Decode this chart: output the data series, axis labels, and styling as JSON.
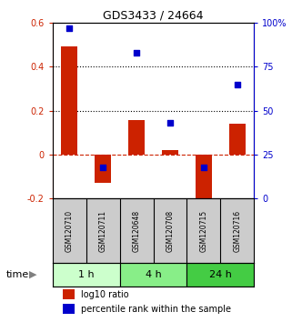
{
  "title": "GDS3433 / 24664",
  "samples": [
    "GSM120710",
    "GSM120711",
    "GSM120648",
    "GSM120708",
    "GSM120715",
    "GSM120716"
  ],
  "log10_ratio": [
    0.49,
    -0.13,
    0.155,
    0.02,
    -0.22,
    0.14
  ],
  "percentile_rank": [
    97,
    18,
    83,
    43,
    18,
    65
  ],
  "bar_color": "#cc2200",
  "dot_color": "#0000cc",
  "ylim_left": [
    -0.2,
    0.6
  ],
  "ylim_right": [
    0,
    100
  ],
  "yticks_left": [
    -0.2,
    0.0,
    0.2,
    0.4,
    0.6
  ],
  "ytick_labels_left": [
    "-0.2",
    "0",
    "0.2",
    "0.4",
    "0.6"
  ],
  "yticks_right": [
    0,
    25,
    50,
    75,
    100
  ],
  "ytick_labels_right": [
    "0",
    "25",
    "50",
    "75",
    "100%"
  ],
  "hlines": [
    0.2,
    0.4
  ],
  "time_groups": [
    {
      "label": "1 h",
      "start": 0,
      "end": 2,
      "color": "#ccffcc"
    },
    {
      "label": "4 h",
      "start": 2,
      "end": 4,
      "color": "#88ee88"
    },
    {
      "label": "24 h",
      "start": 4,
      "end": 6,
      "color": "#44cc44"
    }
  ],
  "bar_width": 0.5,
  "zero_line_color": "#cc2200",
  "dotted_line_color": "#000000",
  "bg_color": "#ffffff",
  "sample_box_color": "#cccccc",
  "legend_log10": "log10 ratio",
  "legend_percentile": "percentile rank within the sample",
  "time_label": "time"
}
